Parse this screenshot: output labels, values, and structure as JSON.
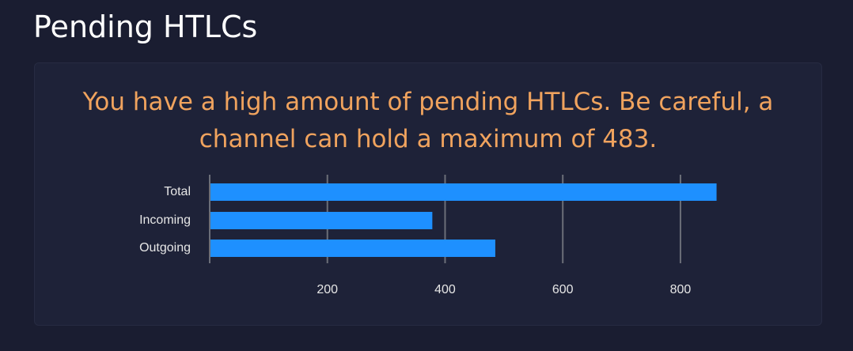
{
  "header": {
    "title": "Pending HTLCs"
  },
  "warning": "You have a high amount of pending HTLCs. Be careful, a channel can hold a maximum of 483.",
  "chart_data": {
    "type": "bar",
    "orientation": "horizontal",
    "categories": [
      "Total",
      "Incoming",
      "Outgoing"
    ],
    "values": [
      860,
      377,
      484
    ],
    "color": "#1e90ff",
    "xlim": [
      0,
      870
    ],
    "xticks": [
      200,
      400,
      600,
      800
    ],
    "grid": true
  }
}
